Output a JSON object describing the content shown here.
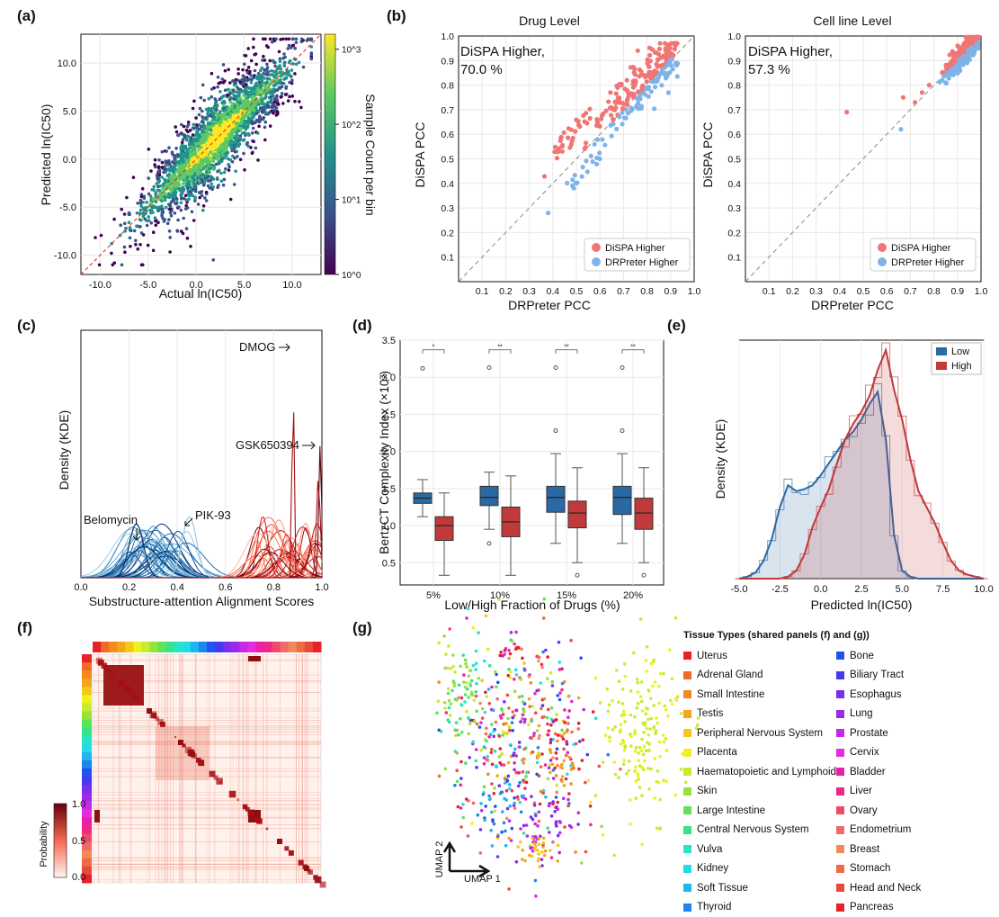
{
  "panels": {
    "a": "(a)",
    "b": "(b)",
    "c": "(c)",
    "d": "(d)",
    "e": "(e)",
    "f": "(f)",
    "g": "(g)"
  },
  "panel_a": {
    "xlabel": "Actual ln(IC50)",
    "ylabel": "Predicted ln(IC50)",
    "ticks": [
      "-10.0",
      "-5.0",
      "0.0",
      "5.0",
      "10.0"
    ],
    "colorbar_label": "Sample Count per bin",
    "colorbar_ticks": [
      "10^0",
      "10^1",
      "10^2",
      "10^3"
    ],
    "colormap": [
      "#440154",
      "#3b528b",
      "#21918c",
      "#5ec962",
      "#fde725"
    ]
  },
  "panel_b": {
    "left_title": "Drug Level",
    "right_title": "Cell line Level",
    "xlabel": "DRPreter PCC",
    "ylabel": "DiSPA PCC",
    "ticks": [
      "0.1",
      "0.2",
      "0.3",
      "0.4",
      "0.5",
      "0.6",
      "0.7",
      "0.8",
      "0.9",
      "1.0"
    ],
    "left_annotation_1": "DiSPA Higher,",
    "left_annotation_2": "70.0 %",
    "right_annotation_1": "DiSPA Higher,",
    "right_annotation_2": "57.3 %",
    "legend_1": "DiSPA Higher",
    "legend_2": "DRPreter Higher",
    "color_1": "#f07575",
    "color_2": "#7fb3e8"
  },
  "panel_c": {
    "xlabel": "Substructure-attention Alignment Scores",
    "ylabel": "Density (KDE)",
    "ticks": [
      "0.0",
      "0.2",
      "0.4",
      "0.6",
      "0.8",
      "1.0"
    ],
    "ann_dmog": "DMOG",
    "ann_gsk": "GSK650394",
    "ann_belo": "Belomycin",
    "ann_pik": "PIK-93"
  },
  "chart_data": [
    {
      "type": "box",
      "title": "",
      "xlabel": "Low/High Fraction of Drugs (%)",
      "ylabel": "BertzCT Complexity Index (×10³)",
      "categories": [
        "5%",
        "10%",
        "15%",
        "20%"
      ],
      "yticks": [
        "0.5",
        "1.0",
        "1.5",
        "2.0",
        "2.5",
        "3.0",
        "3.5"
      ],
      "ylim": [
        0.2,
        3.5
      ],
      "significance": [
        "*",
        "**",
        "**",
        "**"
      ],
      "series": [
        {
          "name": "Low",
          "color": "#2a69a3",
          "boxes": [
            {
              "lw": 1.12,
              "q1": 1.3,
              "med": 1.37,
              "q3": 1.44,
              "uw": 1.62,
              "out": [
                3.12
              ]
            },
            {
              "lw": 0.95,
              "q1": 1.27,
              "med": 1.38,
              "q3": 1.53,
              "uw": 1.72,
              "out": [
                0.76,
                3.13
              ]
            },
            {
              "lw": 0.76,
              "q1": 1.18,
              "med": 1.38,
              "q3": 1.53,
              "uw": 1.97,
              "out": [
                2.28,
                3.13
              ]
            },
            {
              "lw": 0.76,
              "q1": 1.15,
              "med": 1.38,
              "q3": 1.53,
              "uw": 1.97,
              "out": [
                2.28,
                3.13
              ]
            }
          ]
        },
        {
          "name": "High",
          "color": "#c0393b",
          "boxes": [
            {
              "lw": 0.33,
              "q1": 0.8,
              "med": 1.0,
              "q3": 1.12,
              "uw": 1.44,
              "out": []
            },
            {
              "lw": 0.33,
              "q1": 0.85,
              "med": 1.05,
              "q3": 1.25,
              "uw": 1.67,
              "out": []
            },
            {
              "lw": 0.5,
              "q1": 0.97,
              "med": 1.17,
              "q3": 1.33,
              "uw": 1.78,
              "out": [
                0.33
              ]
            },
            {
              "lw": 0.5,
              "q1": 0.95,
              "med": 1.17,
              "q3": 1.37,
              "uw": 1.78,
              "out": [
                0.33
              ]
            }
          ]
        }
      ]
    },
    {
      "type": "area",
      "xlabel": "Predicted ln(IC50)",
      "ylabel": "Density (KDE)",
      "xticks": [
        "-5.0",
        "-2.5",
        "0.0",
        "2.5",
        "5.0",
        "7.5",
        "10.0"
      ],
      "xlim": [
        -5,
        10
      ],
      "legend": [
        "Low",
        "High"
      ],
      "colors": [
        "#2a69a3",
        "#c0393b"
      ],
      "x": [
        -5,
        -4.5,
        -4,
        -3.5,
        -3,
        -2.5,
        -2,
        -1.5,
        -1,
        -0.5,
        0,
        0.5,
        1,
        1.5,
        2,
        2.5,
        3,
        3.5,
        4,
        4.5,
        5,
        5.5,
        6,
        6.5,
        7,
        7.5,
        8,
        8.5,
        9,
        9.5,
        10
      ],
      "series": [
        {
          "name": "Low",
          "values": [
            0.0,
            0.01,
            0.03,
            0.09,
            0.2,
            0.36,
            0.47,
            0.44,
            0.45,
            0.47,
            0.52,
            0.58,
            0.64,
            0.7,
            0.74,
            0.8,
            0.88,
            0.94,
            0.7,
            0.22,
            0.04,
            0.01,
            0,
            0,
            0,
            0,
            0,
            0,
            0,
            0,
            0
          ]
        },
        {
          "name": "High",
          "values": [
            0,
            0,
            0,
            0,
            0,
            0,
            0.01,
            0.04,
            0.12,
            0.26,
            0.36,
            0.45,
            0.58,
            0.7,
            0.78,
            0.84,
            0.92,
            1.05,
            1.15,
            0.95,
            0.8,
            0.6,
            0.44,
            0.36,
            0.28,
            0.18,
            0.09,
            0.04,
            0.02,
            0.01,
            0
          ]
        }
      ]
    }
  ],
  "panel_f": {
    "colorbar_label": "Probability",
    "ticks": [
      "1.0",
      "0.5",
      "0.0"
    ]
  },
  "panel_g": {
    "umap1": "UMAP 1",
    "umap2": "UMAP 2"
  },
  "legend": {
    "title": "Tissue Types (shared panels (f) and (g))",
    "left": [
      {
        "label": "Uterus",
        "color": "#e8202a"
      },
      {
        "label": "Adrenal Gland",
        "color": "#ef6a2a"
      },
      {
        "label": "Small Intestine",
        "color": "#f48a1c"
      },
      {
        "label": "Testis",
        "color": "#f4a51b"
      },
      {
        "label": "Peripheral Nervous System",
        "color": "#f6c71a"
      },
      {
        "label": "Placenta",
        "color": "#eef020"
      },
      {
        "label": "Haematopoietic and Lymphoid",
        "color": "#c8ec2d"
      },
      {
        "label": "Skin",
        "color": "#95e33b"
      },
      {
        "label": "Large Intestine",
        "color": "#5ee458"
      },
      {
        "label": "Central Nervous System",
        "color": "#34e38c"
      },
      {
        "label": "Vulva",
        "color": "#28e4c5"
      },
      {
        "label": "Kidney",
        "color": "#22dcec"
      },
      {
        "label": "Soft Tissue",
        "color": "#20b5ee"
      },
      {
        "label": "Thyroid",
        "color": "#1c86ee"
      }
    ],
    "right": [
      {
        "label": "Bone",
        "color": "#2353ee"
      },
      {
        "label": "Biliary Tract",
        "color": "#4538ee"
      },
      {
        "label": "Esophagus",
        "color": "#7a2eee"
      },
      {
        "label": "Lung",
        "color": "#9d2ae8"
      },
      {
        "label": "Prostate",
        "color": "#c22ae8"
      },
      {
        "label": "Cervix",
        "color": "#e52ae0"
      },
      {
        "label": "Bladder",
        "color": "#e820a8"
      },
      {
        "label": "Liver",
        "color": "#ec2a86"
      },
      {
        "label": "Ovary",
        "color": "#ef4a68"
      },
      {
        "label": "Endometrium",
        "color": "#ef6a6a"
      },
      {
        "label": "Breast",
        "color": "#f08a5a"
      },
      {
        "label": "Stomach",
        "color": "#ef6a45"
      },
      {
        "label": "Head and Neck",
        "color": "#ea4a3a"
      },
      {
        "label": "Pancreas",
        "color": "#e8202a"
      }
    ]
  }
}
